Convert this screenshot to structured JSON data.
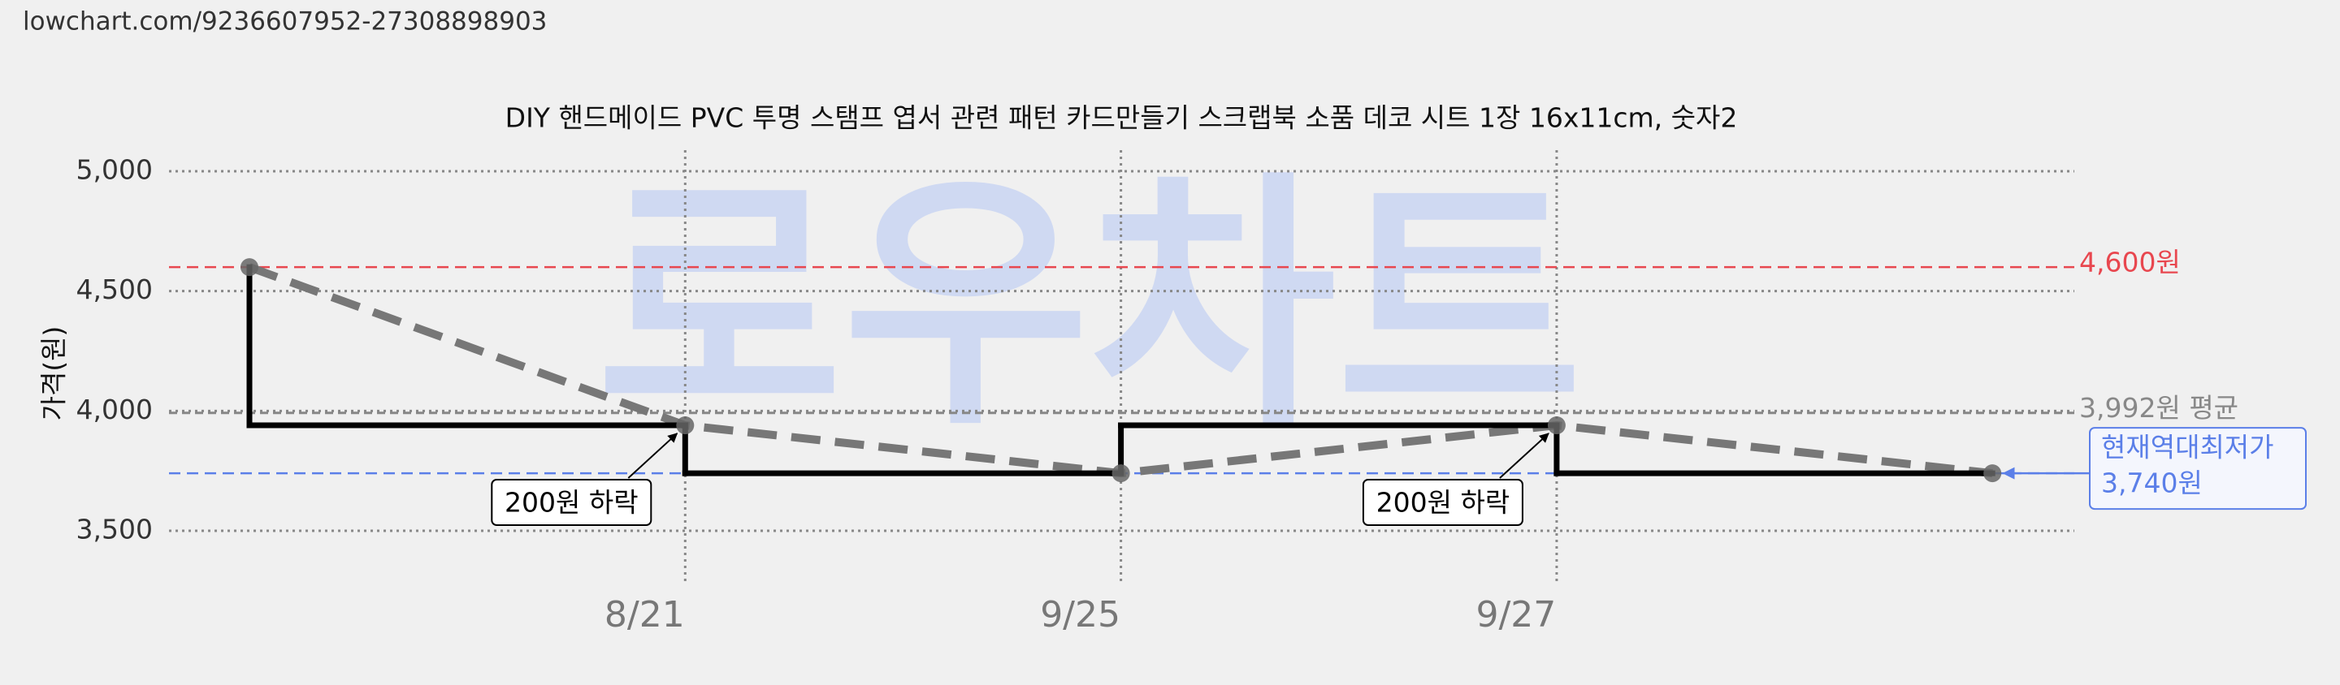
{
  "url": "lowchart.com/9236607952-27308898903",
  "chart_data": {
    "type": "line",
    "title": "DIY 핸드메이드 PVC 투명 스탬프 엽서 관련 패턴 카드만들기 스크랩북 소품 데코 시트 1장 16x11cm, 숫자2",
    "y_label": "가격(원)",
    "watermark": "로우차트",
    "categories": [
      null,
      "8/21",
      "9/25",
      "9/27",
      null
    ],
    "values": [
      4600,
      3940,
      3740,
      3940,
      3740
    ],
    "step_color": "#000000",
    "trend_color": "#777777",
    "ylim": [
      3500,
      5000
    ],
    "yticks": [
      {
        "value": 3500,
        "label": "3,500"
      },
      {
        "value": 4000,
        "label": "4,000"
      },
      {
        "value": 4500,
        "label": "4,500"
      },
      {
        "value": 5000,
        "label": "5,000"
      }
    ],
    "grid": true,
    "reference_lines": [
      {
        "value": 4600,
        "label": "4,600원",
        "color": "#e8474f"
      },
      {
        "value": 3992,
        "label": "3,992원 평균",
        "color": "#888888"
      },
      {
        "value": 3740,
        "label": "현재역대최저가",
        "value_label": "3,740원",
        "color": "#5b7fe8"
      }
    ],
    "annotations": [
      {
        "text": "200원 하락",
        "category": "8/21"
      },
      {
        "text": "200원 하락",
        "category": "9/27"
      }
    ]
  }
}
